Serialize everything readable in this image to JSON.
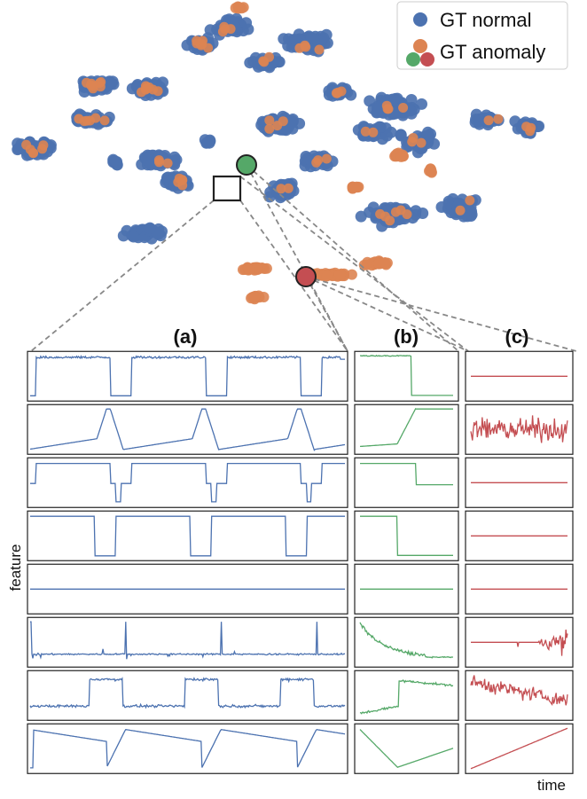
{
  "legend": {
    "normal_label": "GT normal",
    "anomaly_label": "GT anomaly",
    "placement": "top-right"
  },
  "colors": {
    "normal": "#4c72b0",
    "anomaly": "#dd8452",
    "sample_b": "#55a868",
    "sample_c": "#c44e52",
    "frame": "#222222",
    "connector": "#888888"
  },
  "axes": {
    "ylabel": "feature",
    "xlabel": "time"
  },
  "panels": [
    {
      "id": "a",
      "title": "(a)",
      "color": "#4c72b0"
    },
    {
      "id": "b",
      "title": "(b)",
      "color": "#55a868"
    },
    {
      "id": "c",
      "title": "(c)",
      "color": "#c44e52"
    }
  ],
  "chart_data": [
    {
      "type": "scatter",
      "description_kind": "2-D embedding of windows",
      "series": [
        {
          "name": "GT normal",
          "color": "#4c72b0"
        },
        {
          "name": "GT anomaly",
          "color": "#dd8452"
        }
      ],
      "highlighted": [
        "b",
        "c"
      ],
      "grid": false
    },
    {
      "type": "line",
      "rows": 8,
      "columns": [
        "(a)",
        "(b)",
        "(c)"
      ],
      "row_patterns": {
        "a": [
          "square",
          "sawtooth",
          "square_low",
          "square_full",
          "flat",
          "spikes",
          "noisy_square",
          "decay"
        ],
        "b": [
          "high_drop",
          "ramp_up",
          "step_down",
          "step_down_full",
          "flat",
          "noisy_decay",
          "noisy_rise",
          "recover"
        ],
        "c": [
          "flat",
          "noise",
          "flat",
          "flat",
          "flat",
          "bursts",
          "noisy_drift",
          "linear"
        ]
      }
    }
  ]
}
